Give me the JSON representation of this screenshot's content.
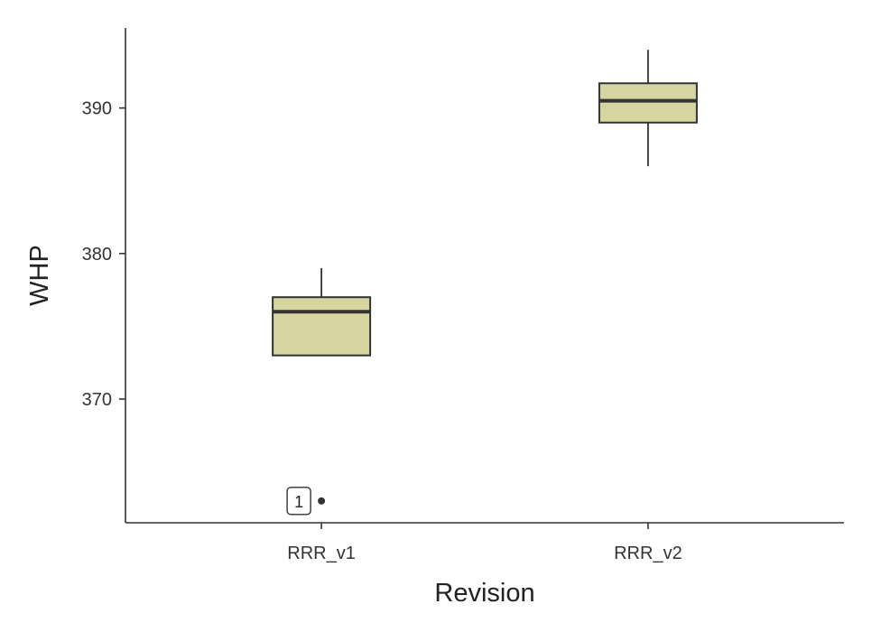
{
  "chart_data": {
    "type": "box",
    "xlabel": "Revision",
    "ylabel": "WHP",
    "categories": [
      "RRR_v1",
      "RRR_v2"
    ],
    "ylim": [
      361.5,
      395.5
    ],
    "yticks": [
      370,
      380,
      390
    ],
    "ytick_labels": [
      "370",
      "380",
      "390"
    ],
    "box_fill": "#d6d4a0",
    "box_stroke": "#333333",
    "grid": false,
    "boxes": [
      {
        "category": "RRR_v1",
        "whisker_low": 373,
        "q1": 373,
        "median": 376,
        "q3": 377,
        "whisker_high": 379,
        "outliers": [
          {
            "value": 363,
            "label": "1"
          }
        ]
      },
      {
        "category": "RRR_v2",
        "whisker_low": 386,
        "q1": 389,
        "median": 390.5,
        "q3": 391.7,
        "whisker_high": 394,
        "outliers": []
      }
    ]
  }
}
